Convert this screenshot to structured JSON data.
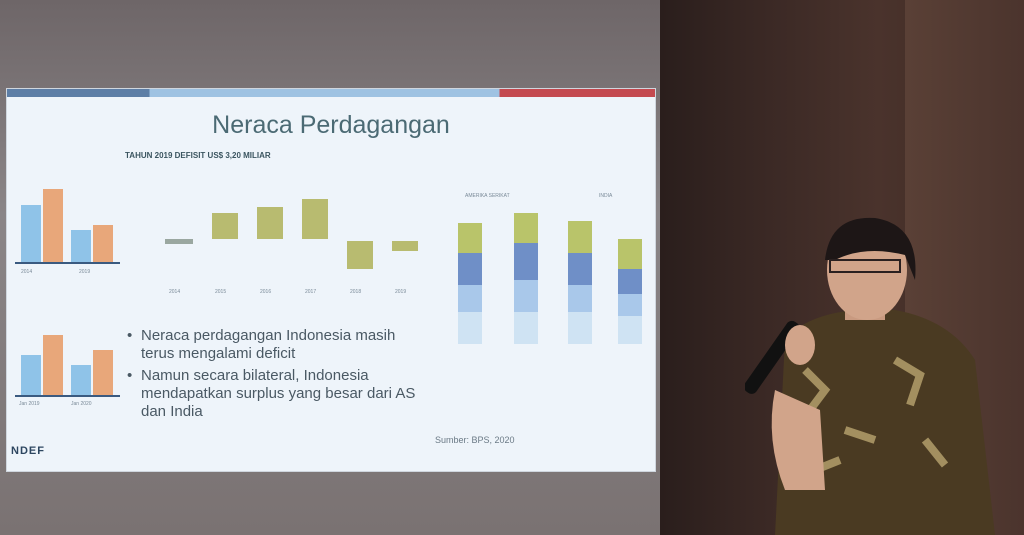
{
  "slide": {
    "title": "Neraca Perdagangan",
    "subtitle": "TAHUN 2019 DEFISIT US$ 3,20 MILIAR",
    "bullets": [
      "Neraca perdagangan Indonesia masih terus mengalami deficit",
      "Namun secara bilateral, Indonesia mendapatkan surplus yang besar dari AS dan India"
    ],
    "source": "Sumber: BPS, 2020",
    "logo": "NDEF",
    "waterfall_years": [
      "2014",
      "2015",
      "2016",
      "2017",
      "2018",
      "2019"
    ],
    "bilateral_labels": [
      "AMERIKA SERIKAT",
      "INDIA"
    ],
    "left_top_years": [
      "2014",
      "2019"
    ],
    "left_bottom_years": [
      "Jan 2019",
      "Jan 2020"
    ]
  },
  "colors": {
    "blue": "#8fc3e8",
    "orange": "#e8a77a",
    "olive": "#b9c46a",
    "navy": "#6f8fc7",
    "lightblue": "#a9c8ea",
    "pale": "#cfe3f3"
  }
}
